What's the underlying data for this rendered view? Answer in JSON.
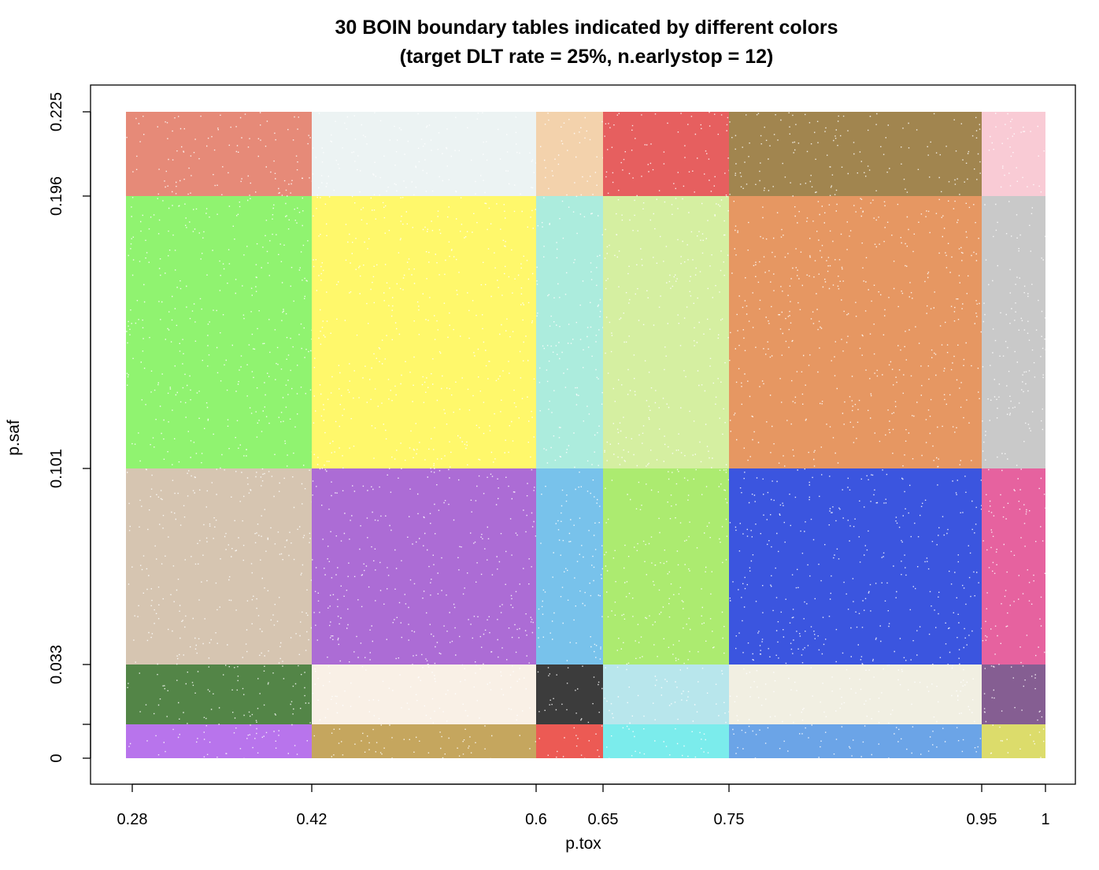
{
  "chart_data": {
    "type": "scatter",
    "title": "30 BOIN boundary tables indicated by different colors",
    "subtitle": "(target DLT rate = 25%, n.earlystop = 12)",
    "xlabel": "p.tox",
    "ylabel": "p.saf",
    "xlim": [
      0.28,
      1
    ],
    "ylim": [
      0,
      0.225
    ],
    "x_ticks": [
      {
        "value": 0.28,
        "label": "0.28"
      },
      {
        "value": 0.42,
        "label": "0.42"
      },
      {
        "value": 0.6,
        "label": "0.6"
      },
      {
        "value": 0.65,
        "label": "0.65"
      },
      {
        "value": 0.75,
        "label": "0.75"
      },
      {
        "value": 0.95,
        "label": "0.95"
      },
      {
        "value": 1,
        "label": "1"
      }
    ],
    "y_ticks": [
      {
        "value": 0,
        "label": "0"
      },
      {
        "value": 0.012,
        "label": ""
      },
      {
        "value": 0.033,
        "label": "0.033"
      },
      {
        "value": 0.101,
        "label": "0.101"
      },
      {
        "value": 0.196,
        "label": "0.196"
      },
      {
        "value": 0.225,
        "label": "0.225"
      }
    ],
    "x_breaks": [
      0.28,
      0.42,
      0.6,
      0.65,
      0.75,
      0.95,
      1
    ],
    "y_breaks": [
      0,
      0.012,
      0.033,
      0.101,
      0.196,
      0.225
    ],
    "region_colors_bottom_to_top": [
      [
        "#a855e8",
        "#b8923a",
        "#e8362e",
        "#5ee8e8",
        "#4a90e2",
        "#d4d44a"
      ],
      [
        "#2d6a1e",
        "#f8ede0",
        "#111111",
        "#a8e0e8",
        "#eeecdc",
        "#6a3a7a"
      ],
      [
        "#cdb8a0",
        "#9a4ccc",
        "#5ab4e6",
        "#9ae650",
        "#1030d8",
        "#e0408a"
      ],
      [
        "#78f050",
        "#fff64a",
        "#9ae8d6",
        "#ccec8c",
        "#e08040",
        "#bdbdbd"
      ],
      [
        "#e0705a",
        "#e8f0f0",
        "#f0c89a",
        "#e03c3c",
        "#8c6a28",
        "#f8c0cc"
      ]
    ],
    "grid": false,
    "legend": "none"
  }
}
